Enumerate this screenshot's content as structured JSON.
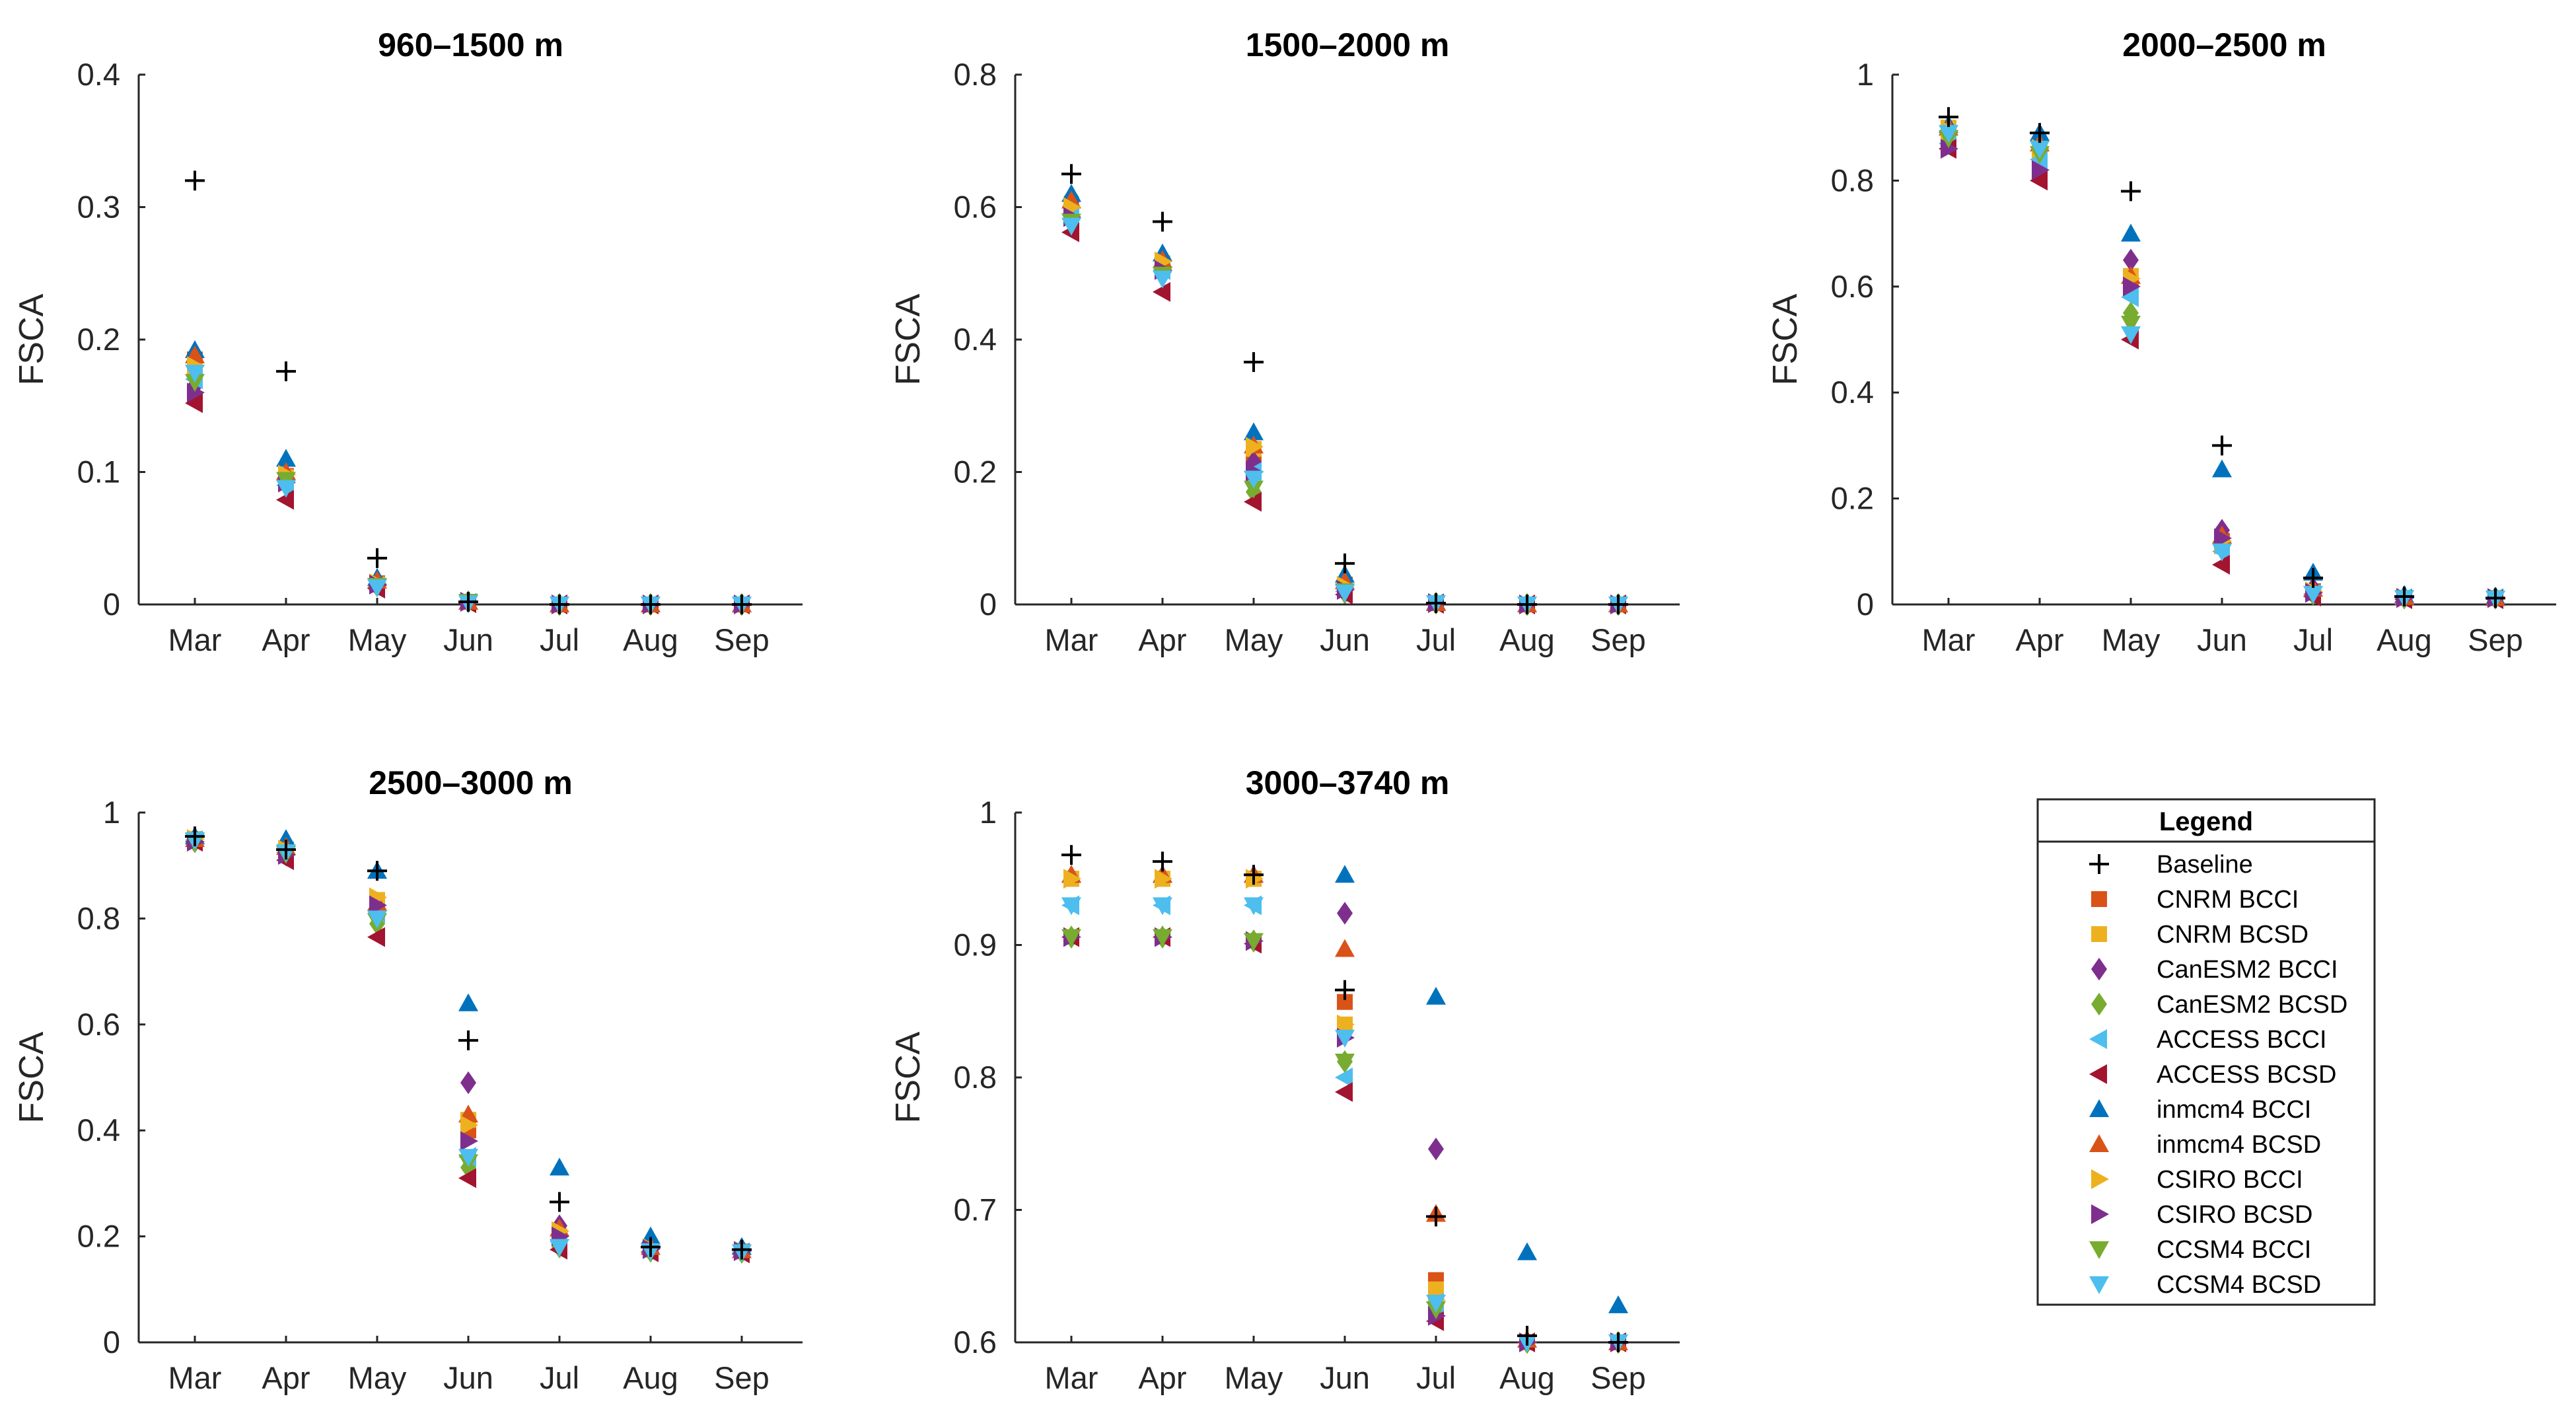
{
  "chart_data": {
    "type": "scatter",
    "ylabel": "FSCA",
    "categories": [
      "Mar",
      "Apr",
      "May",
      "Jun",
      "Jul",
      "Aug",
      "Sep"
    ],
    "legend": {
      "title": "Legend",
      "entries": [
        {
          "name": "Baseline",
          "marker": "plus",
          "color": "#000000"
        },
        {
          "name": "CNRM BCCI",
          "marker": "square",
          "color": "#D95319"
        },
        {
          "name": "CNRM BCSD",
          "marker": "square",
          "color": "#EDB120"
        },
        {
          "name": "CanESM2 BCCI",
          "marker": "diamond",
          "color": "#7E2F8E"
        },
        {
          "name": "CanESM2 BCSD",
          "marker": "diamond",
          "color": "#77AC30"
        },
        {
          "name": "ACCESS BCCI",
          "marker": "triangle-left",
          "color": "#4DBEEE"
        },
        {
          "name": "ACCESS BCSD",
          "marker": "triangle-left",
          "color": "#A2142F"
        },
        {
          "name": "inmcm4 BCCI",
          "marker": "triangle-up",
          "color": "#0072BD"
        },
        {
          "name": "inmcm4 BCSD",
          "marker": "triangle-up",
          "color": "#D95319"
        },
        {
          "name": "CSIRO BCCI",
          "marker": "triangle-right",
          "color": "#EDB120"
        },
        {
          "name": "CSIRO BCSD",
          "marker": "triangle-right",
          "color": "#7E2F8E"
        },
        {
          "name": "CCSM4 BCCI",
          "marker": "triangle-down",
          "color": "#77AC30"
        },
        {
          "name": "CCSM4 BCSD",
          "marker": "triangle-down",
          "color": "#4DBEEE"
        }
      ]
    },
    "panels": [
      {
        "title": "960–1500 m",
        "ylim": [
          0,
          0.4
        ],
        "yticks": [
          0,
          0.1,
          0.2,
          0.3,
          0.4
        ],
        "yticklabels": [
          "0",
          "0.1",
          "0.2",
          "0.3",
          "0.4"
        ],
        "series": {
          "Baseline": [
            0.32,
            0.176,
            0.035,
            0.002,
            0.0,
            0.0,
            0.0
          ],
          "CNRM BCCI": [
            0.185,
            0.097,
            0.016,
            0.002,
            0.0,
            0.0,
            0.0
          ],
          "CNRM BCSD": [
            0.178,
            0.096,
            0.015,
            0.002,
            0.0,
            0.0,
            0.0
          ],
          "CanESM2 BCCI": [
            0.165,
            0.091,
            0.017,
            0.002,
            0.0,
            0.0,
            0.0
          ],
          "CanESM2 BCSD": [
            0.172,
            0.093,
            0.014,
            0.002,
            0.0,
            0.0,
            0.0
          ],
          "ACCESS BCCI": [
            0.17,
            0.09,
            0.013,
            0.001,
            0.0,
            0.0,
            0.0
          ],
          "ACCESS BCSD": [
            0.152,
            0.079,
            0.012,
            0.001,
            0.0,
            0.0,
            0.0
          ],
          "inmcm4 BCCI": [
            0.192,
            0.11,
            0.02,
            0.002,
            0.0,
            0.0,
            0.0
          ],
          "inmcm4 BCSD": [
            0.188,
            0.1,
            0.018,
            0.002,
            0.0,
            0.0,
            0.0
          ],
          "CSIRO BCCI": [
            0.18,
            0.098,
            0.016,
            0.002,
            0.0,
            0.0,
            0.0
          ],
          "CSIRO BCSD": [
            0.16,
            0.092,
            0.015,
            0.002,
            0.0,
            0.0,
            0.0
          ],
          "CCSM4 BCCI": [
            0.168,
            0.094,
            0.014,
            0.002,
            0.0,
            0.0,
            0.0
          ],
          "CCSM4 BCSD": [
            0.175,
            0.088,
            0.013,
            0.001,
            0.0,
            0.0,
            0.0
          ]
        }
      },
      {
        "title": "1500–2000 m",
        "ylim": [
          0,
          0.8
        ],
        "yticks": [
          0,
          0.2,
          0.4,
          0.6,
          0.8
        ],
        "yticklabels": [
          "0",
          "0.2",
          "0.4",
          "0.6",
          "0.8"
        ],
        "series": {
          "Baseline": [
            0.65,
            0.578,
            0.366,
            0.062,
            0.002,
            0.0,
            0.0
          ],
          "CNRM BCCI": [
            0.6,
            0.51,
            0.22,
            0.03,
            0.002,
            0.0,
            0.0
          ],
          "CNRM BCSD": [
            0.595,
            0.515,
            0.235,
            0.025,
            0.002,
            0.0,
            0.0
          ],
          "CanESM2 BCCI": [
            0.608,
            0.505,
            0.215,
            0.022,
            0.002,
            0.0,
            0.0
          ],
          "CanESM2 BCSD": [
            0.615,
            0.5,
            0.17,
            0.018,
            0.002,
            0.0,
            0.0
          ],
          "ACCESS BCCI": [
            0.59,
            0.505,
            0.2,
            0.02,
            0.002,
            0.0,
            0.0
          ],
          "ACCESS BCSD": [
            0.562,
            0.472,
            0.155,
            0.015,
            0.001,
            0.0,
            0.0
          ],
          "inmcm4 BCCI": [
            0.62,
            0.53,
            0.26,
            0.045,
            0.003,
            0.0,
            0.0
          ],
          "inmcm4 BCSD": [
            0.61,
            0.52,
            0.24,
            0.035,
            0.002,
            0.0,
            0.0
          ],
          "CSIRO BCCI": [
            0.6,
            0.518,
            0.238,
            0.028,
            0.002,
            0.0,
            0.0
          ],
          "CSIRO BCSD": [
            0.585,
            0.505,
            0.2,
            0.022,
            0.002,
            0.0,
            0.0
          ],
          "CCSM4 BCCI": [
            0.578,
            0.498,
            0.175,
            0.02,
            0.002,
            0.0,
            0.0
          ],
          "CCSM4 BCSD": [
            0.572,
            0.492,
            0.19,
            0.018,
            0.002,
            0.0,
            0.0
          ]
        }
      },
      {
        "title": "2000–2500 m",
        "ylim": [
          0,
          1
        ],
        "yticks": [
          0,
          0.2,
          0.4,
          0.6,
          0.8,
          1
        ],
        "yticklabels": [
          "0",
          "0.2",
          "0.4",
          "0.6",
          "0.8",
          "1"
        ],
        "series": {
          "Baseline": [
            0.92,
            0.89,
            0.78,
            0.3,
            0.05,
            0.015,
            0.012
          ],
          "CNRM BCCI": [
            0.89,
            0.85,
            0.6,
            0.12,
            0.025,
            0.012,
            0.012
          ],
          "CNRM BCSD": [
            0.9,
            0.86,
            0.62,
            0.11,
            0.022,
            0.012,
            0.012
          ],
          "CanESM2 BCCI": [
            0.88,
            0.84,
            0.65,
            0.14,
            0.03,
            0.013,
            0.012
          ],
          "CanESM2 BCSD": [
            0.875,
            0.83,
            0.55,
            0.12,
            0.02,
            0.012,
            0.012
          ],
          "ACCESS BCCI": [
            0.87,
            0.84,
            0.58,
            0.1,
            0.02,
            0.012,
            0.012
          ],
          "ACCESS BCSD": [
            0.86,
            0.8,
            0.5,
            0.075,
            0.015,
            0.01,
            0.01
          ],
          "inmcm4 BCCI": [
            0.905,
            0.89,
            0.7,
            0.255,
            0.06,
            0.018,
            0.015
          ],
          "inmcm4 BCSD": [
            0.9,
            0.87,
            0.62,
            0.13,
            0.03,
            0.014,
            0.012
          ],
          "CSIRO BCCI": [
            0.895,
            0.86,
            0.615,
            0.12,
            0.025,
            0.013,
            0.012
          ],
          "CSIRO BCSD": [
            0.86,
            0.82,
            0.6,
            0.125,
            0.022,
            0.012,
            0.012
          ],
          "CCSM4 BCCI": [
            0.88,
            0.85,
            0.53,
            0.1,
            0.02,
            0.012,
            0.011
          ],
          "CCSM4 BCSD": [
            0.89,
            0.86,
            0.51,
            0.1,
            0.02,
            0.012,
            0.011
          ]
        }
      },
      {
        "title": "2500–3000 m",
        "ylim": [
          0,
          1
        ],
        "yticks": [
          0,
          0.2,
          0.4,
          0.6,
          0.8,
          1
        ],
        "yticklabels": [
          "0",
          "0.2",
          "0.4",
          "0.6",
          "0.8",
          "1"
        ],
        "series": {
          "Baseline": [
            0.955,
            0.93,
            0.89,
            0.57,
            0.265,
            0.18,
            0.175
          ],
          "CNRM BCCI": [
            0.95,
            0.93,
            0.82,
            0.4,
            0.2,
            0.175,
            0.172
          ],
          "CNRM BCSD": [
            0.95,
            0.928,
            0.835,
            0.42,
            0.2,
            0.175,
            0.172
          ],
          "CanESM2 BCCI": [
            0.945,
            0.92,
            0.82,
            0.49,
            0.22,
            0.18,
            0.173
          ],
          "CanESM2 BCSD": [
            0.945,
            0.92,
            0.79,
            0.33,
            0.18,
            0.172,
            0.17
          ],
          "ACCESS BCCI": [
            0.948,
            0.925,
            0.81,
            0.35,
            0.19,
            0.172,
            0.17
          ],
          "ACCESS BCSD": [
            0.945,
            0.91,
            0.765,
            0.31,
            0.175,
            0.17,
            0.168
          ],
          "inmcm4 BCCI": [
            0.955,
            0.95,
            0.89,
            0.64,
            0.33,
            0.2,
            0.18
          ],
          "inmcm4 BCSD": [
            0.95,
            0.935,
            0.83,
            0.43,
            0.215,
            0.18,
            0.174
          ],
          "CSIRO BCCI": [
            0.95,
            0.93,
            0.84,
            0.41,
            0.21,
            0.178,
            0.173
          ],
          "CSIRO BCSD": [
            0.945,
            0.92,
            0.825,
            0.38,
            0.2,
            0.176,
            0.172
          ],
          "CCSM4 BCCI": [
            0.946,
            0.922,
            0.795,
            0.34,
            0.18,
            0.172,
            0.17
          ],
          "CCSM4 BCSD": [
            0.948,
            0.925,
            0.8,
            0.35,
            0.18,
            0.172,
            0.17
          ]
        }
      },
      {
        "title": "3000–3740 m",
        "ylim": [
          0.6,
          1
        ],
        "yticks": [
          0.6,
          0.7,
          0.8,
          0.9,
          1
        ],
        "yticklabels": [
          "0.6",
          "0.7",
          "0.8",
          "0.9",
          "1"
        ],
        "series": {
          "Baseline": [
            0.968,
            0.963,
            0.953,
            0.866,
            0.695,
            0.605,
            0.6
          ],
          "CNRM BCCI": [
            0.95,
            0.95,
            0.95,
            0.857,
            0.647,
            0.6,
            0.6
          ],
          "CNRM BCSD": [
            0.95,
            0.95,
            0.95,
            0.84,
            0.64,
            0.6,
            0.6
          ],
          "CanESM2 BCCI": [
            0.906,
            0.906,
            0.903,
            0.924,
            0.746,
            0.6,
            0.6
          ],
          "CanESM2 BCSD": [
            0.906,
            0.906,
            0.903,
            0.812,
            0.625,
            0.6,
            0.6
          ],
          "ACCESS BCCI": [
            0.93,
            0.93,
            0.93,
            0.8,
            0.63,
            0.6,
            0.6
          ],
          "ACCESS BCSD": [
            0.906,
            0.906,
            0.901,
            0.789,
            0.616,
            0.6,
            0.6
          ],
          "inmcm4 BCCI": [
            0.953,
            0.953,
            0.953,
            0.953,
            0.861,
            0.668,
            0.628
          ],
          "inmcm4 BCSD": [
            0.953,
            0.953,
            0.953,
            0.897,
            0.697,
            0.602,
            0.6
          ],
          "CSIRO BCCI": [
            0.95,
            0.95,
            0.95,
            0.84,
            0.632,
            0.6,
            0.6
          ],
          "CSIRO BCSD": [
            0.906,
            0.906,
            0.903,
            0.83,
            0.62,
            0.6,
            0.6
          ],
          "CCSM4 BCCI": [
            0.906,
            0.906,
            0.903,
            0.812,
            0.625,
            0.6,
            0.6
          ],
          "CCSM4 BCSD": [
            0.93,
            0.93,
            0.93,
            0.83,
            0.63,
            0.6,
            0.6
          ]
        }
      }
    ]
  }
}
